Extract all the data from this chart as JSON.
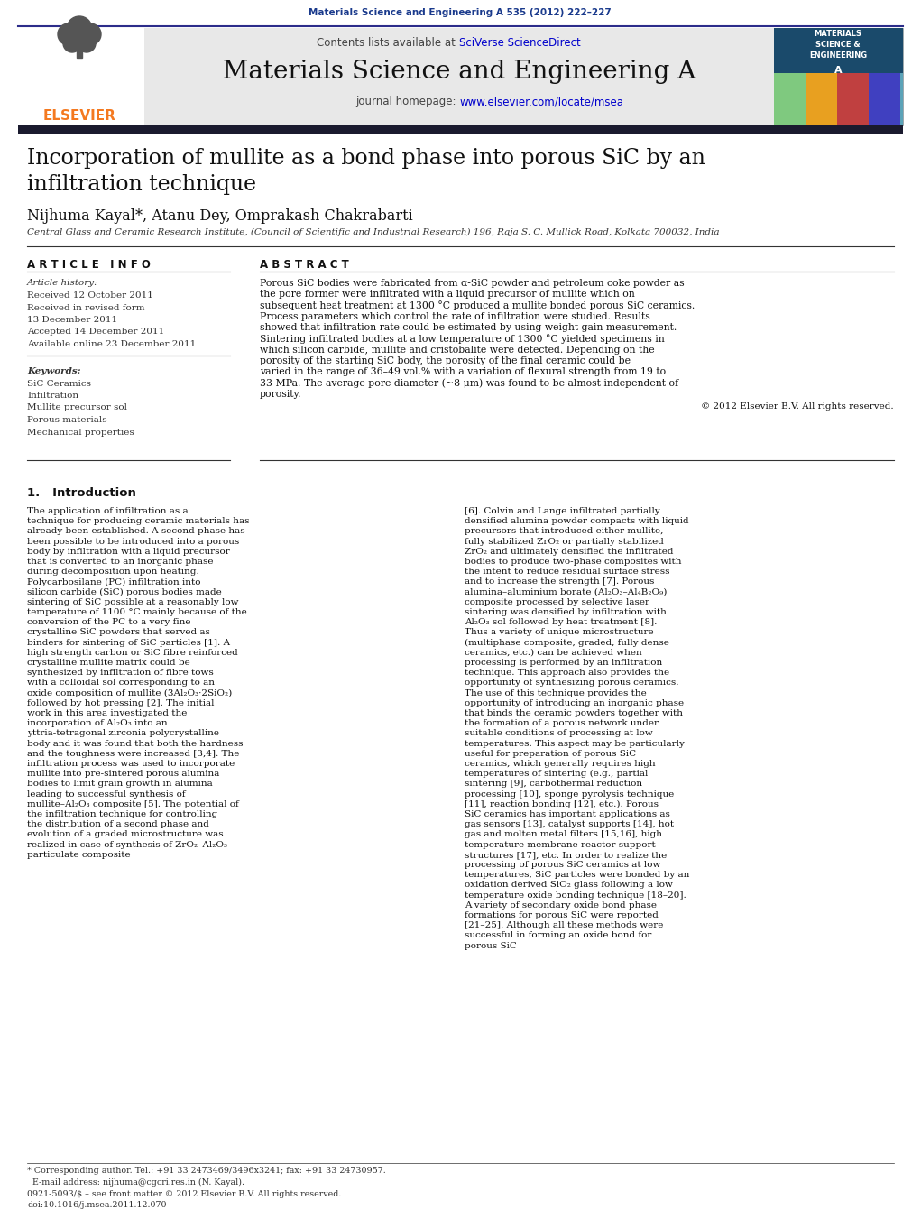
{
  "page_bg": "#ffffff",
  "header_citation": "Materials Science and Engineering A 535 (2012) 222–227",
  "header_citation_color": "#1a3a8c",
  "journal_name": "Materials Science and Engineering A",
  "contents_line": "Contents lists available at SciVerse ScienceDirect",
  "journal_homepage": "journal homepage: www.elsevier.com/locate/msea",
  "journal_homepage_link": "www.elsevier.com/locate/msea",
  "paper_title": "Incorporation of mullite as a bond phase into porous SiC by an\ninfiltration technique",
  "authors": "Nijhuma Kayal*, Atanu Dey, Omprakash Chakrabarti",
  "affiliation": "Central Glass and Ceramic Research Institute, (Council of Scientific and Industrial Research) 196, Raja S. C. Mullick Road, Kolkata 700032, India",
  "article_info_title": "A R T I C L E   I N F O",
  "abstract_title": "A B S T R A C T",
  "article_history_label": "Article history:",
  "history_items": [
    "Received 12 October 2011",
    "Received in revised form",
    "13 December 2011",
    "Accepted 14 December 2011",
    "Available online 23 December 2011"
  ],
  "keywords_label": "Keywords:",
  "keywords": [
    "SiC Ceramics",
    "Infiltration",
    "Mullite precursor sol",
    "Porous materials",
    "Mechanical properties"
  ],
  "abstract_text": "Porous SiC bodies were fabricated from α-SiC powder and petroleum coke powder as the pore former were infiltrated with a liquid precursor of mullite which on subsequent heat treatment at 1300 °C produced a mullite bonded porous SiC ceramics. Process parameters which control the rate of infiltration were studied. Results showed that infiltration rate could be estimated by using weight gain measurement. Sintering infiltrated bodies at a low temperature of 1300 °C yielded specimens in which silicon carbide, mullite and cristobalite were detected. Depending on the porosity of the starting SiC body, the porosity of the final ceramic could be varied in the range of 36–49 vol.% with a variation of flexural strength from 19 to 33 MPa. The average pore diameter (~8 μm) was found to be almost independent of porosity.",
  "copyright": "© 2012 Elsevier B.V. All rights reserved.",
  "section1_title": "1.   Introduction",
  "intro_text_left": "    The application of infiltration as a technique for producing ceramic materials has already been established. A second phase has been possible to be introduced into a porous body by infiltration with a liquid precursor that is converted to an inorganic phase during decomposition upon heating. Polycarbosilane (PC) infiltration into silicon carbide (SiC) porous bodies made sintering of SiC possible at a reasonably low temperature of 1100 °C mainly because of the conversion of the PC to a very fine crystalline SiC powders that served as binders for sintering of SiC particles [1]. A high strength carbon or SiC fibre reinforced crystalline mullite matrix could be synthesized by infiltration of fibre tows with a colloidal sol corresponding to an oxide composition of mullite (3Al₂O₃·2SiO₂) followed by hot pressing [2]. The initial work in this area investigated the incorporation of Al₂O₃ into an yttria-tetragonal zirconia polycrystalline body and it was found that both the hardness and the toughness were increased [3,4]. The infiltration process was used to incorporate mullite into pre-sintered porous alumina bodies to limit grain growth in alumina leading to successful synthesis of mullite–Al₂O₃ composite [5]. The potential of the infiltration technique for controlling the distribution of a second phase and evolution of a graded microstructure was realized in case of synthesis of ZrO₂–Al₂O₃ particulate composite",
  "intro_text_right": "[6]. Colvin and Lange infiltrated partially densified alumina powder compacts with liquid precursors that introduced either mullite, fully stabilized ZrO₂ or partially stabilized ZrO₂ and ultimately densified the infiltrated bodies to produce two-phase composites with the intent to reduce residual surface stress and to increase the strength [7]. Porous alumina–aluminium borate (Al₂O₃–Al₄B₂O₉) composite processed by selective laser sintering was densified by infiltration with Al₂O₃ sol followed by heat treatment [8]. Thus a variety of unique microstructure (multiphase composite, graded, fully dense ceramics, etc.) can be achieved when processing is performed by an infiltration technique. This approach also provides the opportunity of synthesizing porous ceramics. The use of this technique provides the opportunity of introducing an inorganic phase that binds the ceramic powders together with the formation of a porous network under suitable conditions of processing at low temperatures. This aspect may be particularly useful for preparation of porous SiC ceramics, which generally requires high temperatures of sintering (e.g., partial sintering [9], carbothermal reduction processing [10], sponge pyrolysis technique [11], reaction bonding [12], etc.). Porous SiC ceramics has important applications as gas sensors [13], catalyst supports [14], hot gas and molten metal filters [15,16], high temperature membrane reactor support structures [17], etc. In order to realize the processing of porous SiC ceramics at low temperatures, SiC particles were bonded by an oxidation derived SiO₂ glass following a low temperature oxide bonding technique [18–20]. A variety of secondary oxide bond phase formations for porous SiC were reported [21–25]. Although all these methods were successful in forming an oxide bond for porous SiC",
  "footer_line1": "* Corresponding author. Tel.: +91 33 2473469/3496x3241; fax: +91 33 24730957.",
  "footer_line2": "  E-mail address: nijhuma@cgcri.res.in (N. Kayal).",
  "footer_issn1": "0921-5093/$ – see front matter © 2012 Elsevier B.V. All rights reserved.",
  "footer_issn2": "doi:10.1016/j.msea.2011.12.070",
  "header_gray_bg": "#e8e8e8",
  "link_color": "#0000cc",
  "elsevier_orange": "#f47920",
  "dark_bar_color": "#1a1a2e"
}
